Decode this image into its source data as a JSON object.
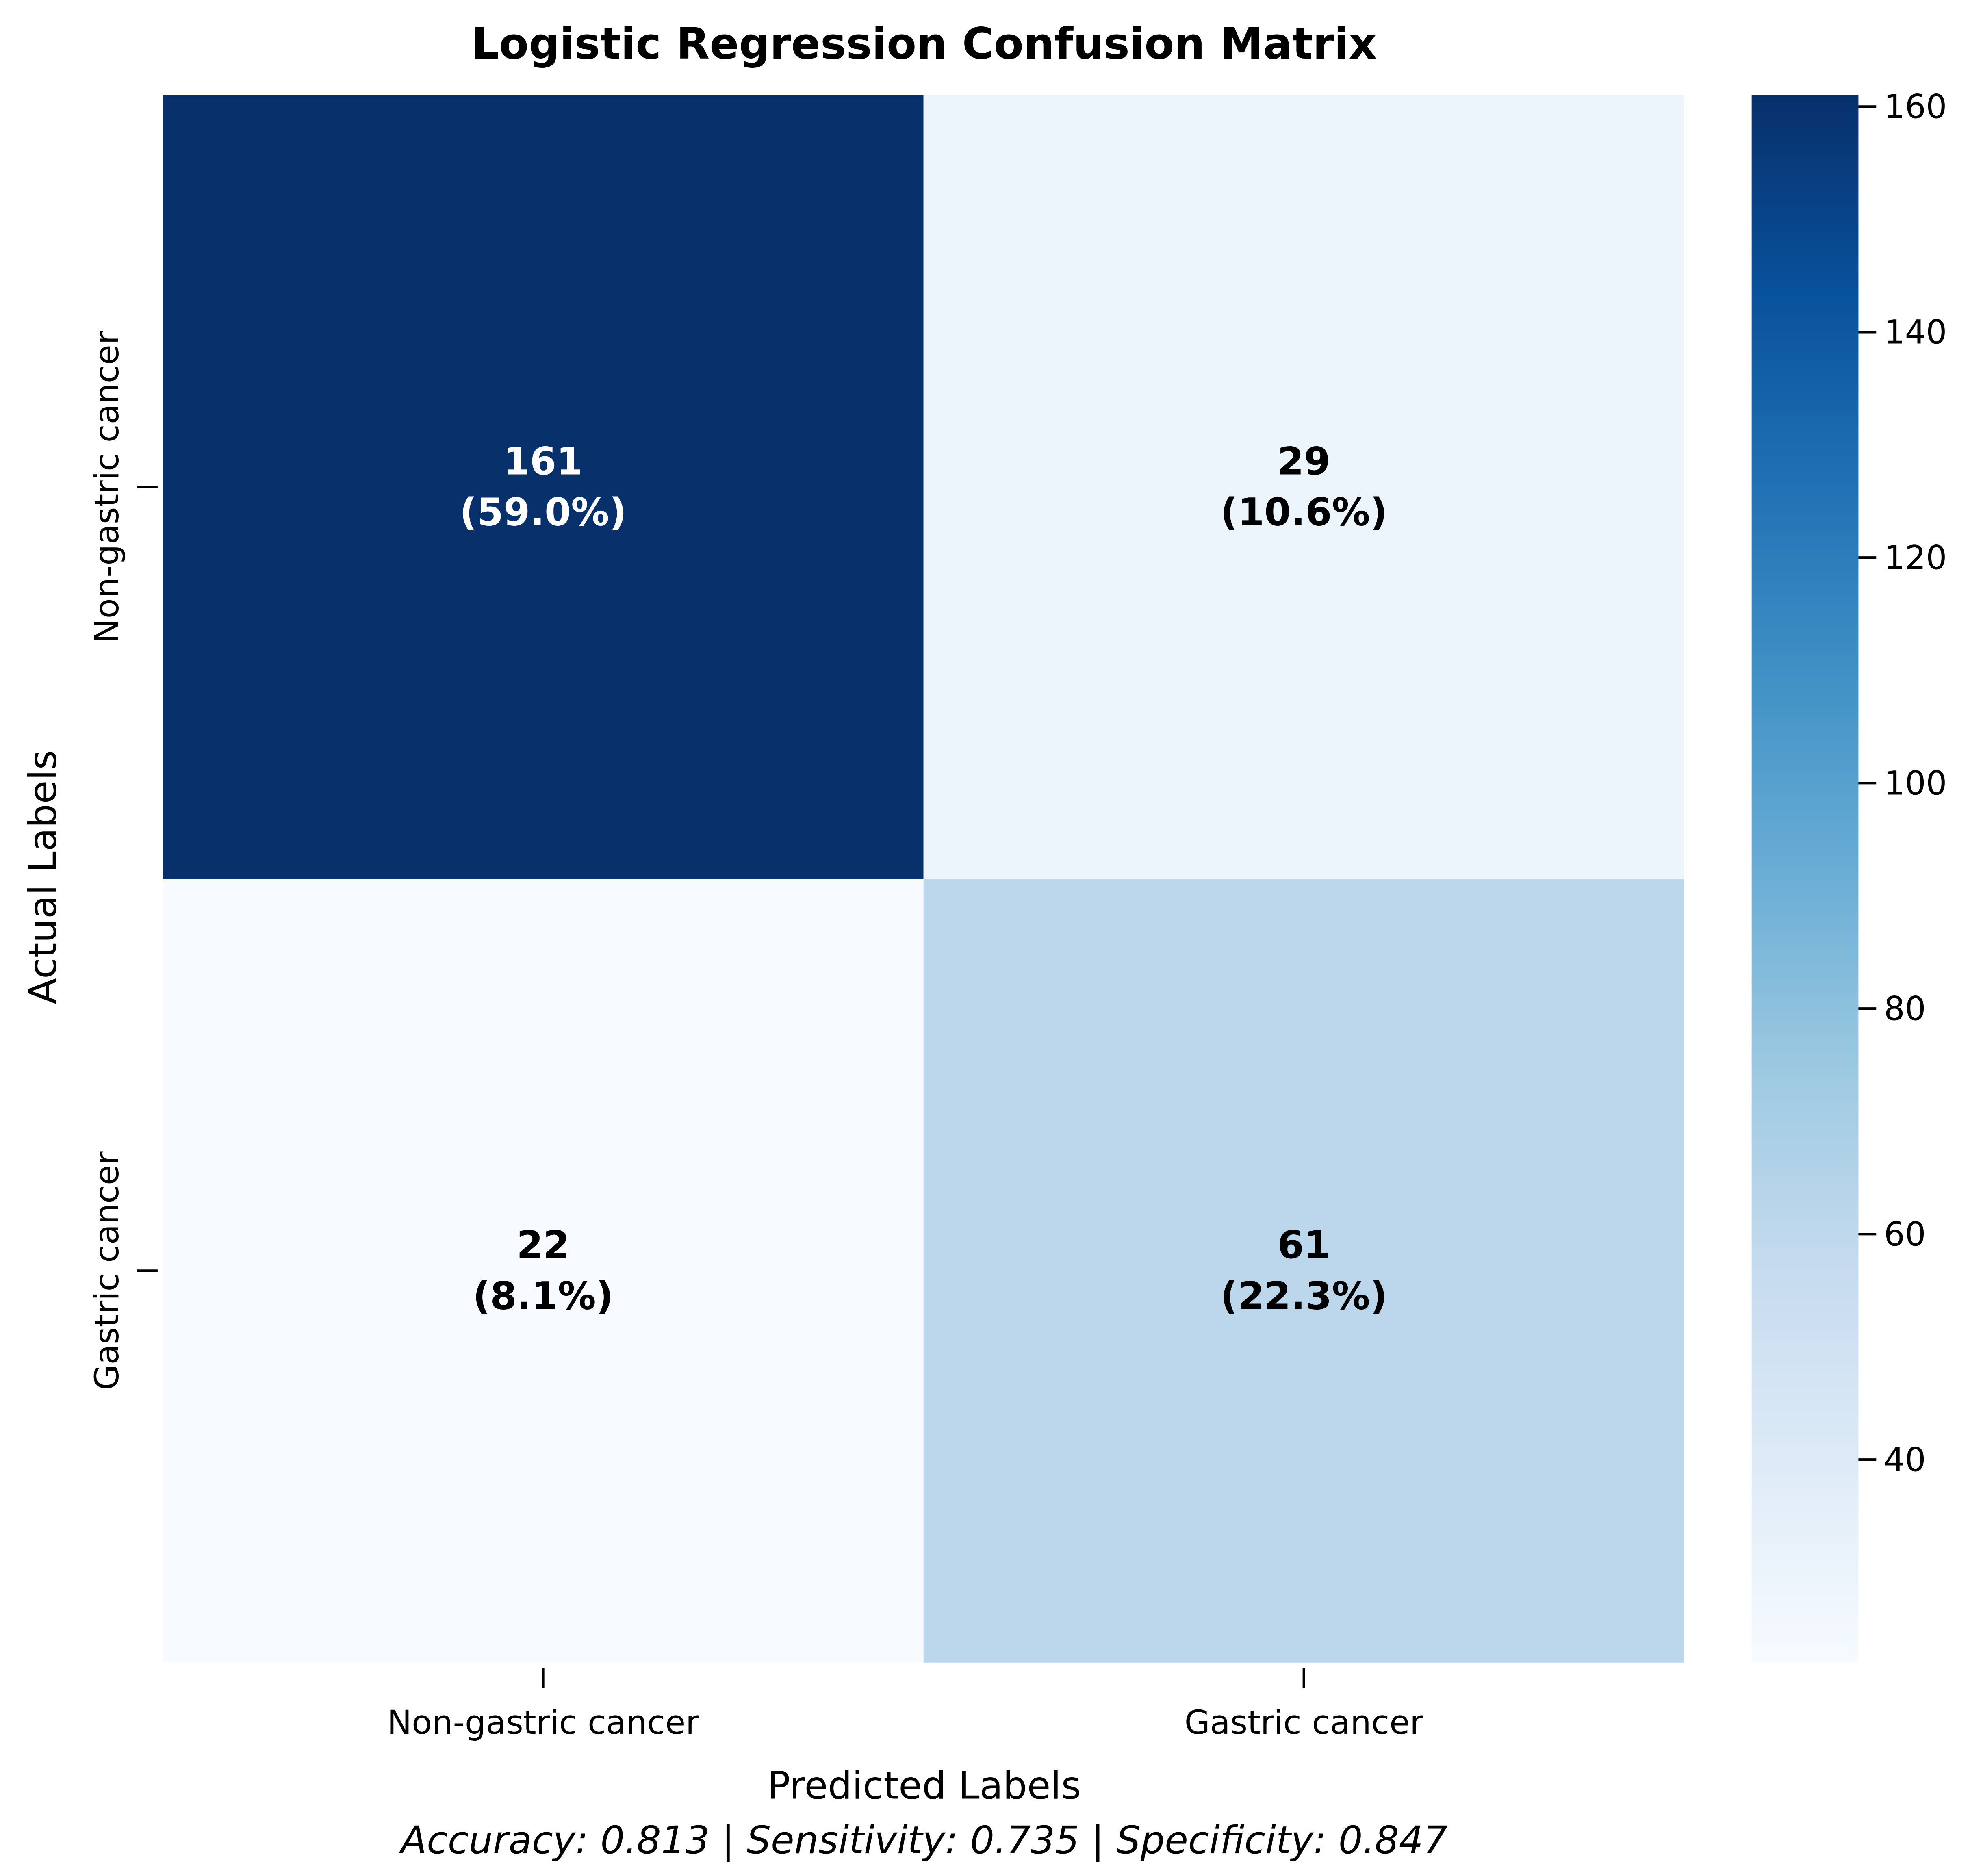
{
  "chart_data": {
    "type": "heatmap",
    "title": "Logistic Regression Confusion Matrix",
    "xlabel": "Predicted Labels",
    "ylabel": "Actual Labels",
    "x_categories": [
      "Non-gastric cancer",
      "Gastric cancer"
    ],
    "y_categories": [
      "Non-gastric cancer",
      "Gastric cancer"
    ],
    "values": [
      [
        161,
        29
      ],
      [
        22,
        61
      ]
    ],
    "cell_labels": [
      [
        "(59.0%)",
        "(10.6%)"
      ],
      [
        "(8.1%)",
        "(22.3%)"
      ]
    ],
    "colormap": "Blues",
    "colorbar": {
      "vmin": 22,
      "vmax": 161,
      "ticks": [
        40,
        60,
        80,
        100,
        120,
        140,
        160
      ]
    },
    "metrics_caption": "Accuracy: 0.813 | Sensitivity: 0.735 | Specificity: 0.847"
  },
  "colors": {
    "blues_stops": [
      "#f7fbff",
      "#deebf7",
      "#c6dbef",
      "#9ecae1",
      "#6baed6",
      "#4292c6",
      "#2171b5",
      "#08519c",
      "#08306b"
    ],
    "text_dark": "#000000",
    "text_light": "#ffffff"
  }
}
